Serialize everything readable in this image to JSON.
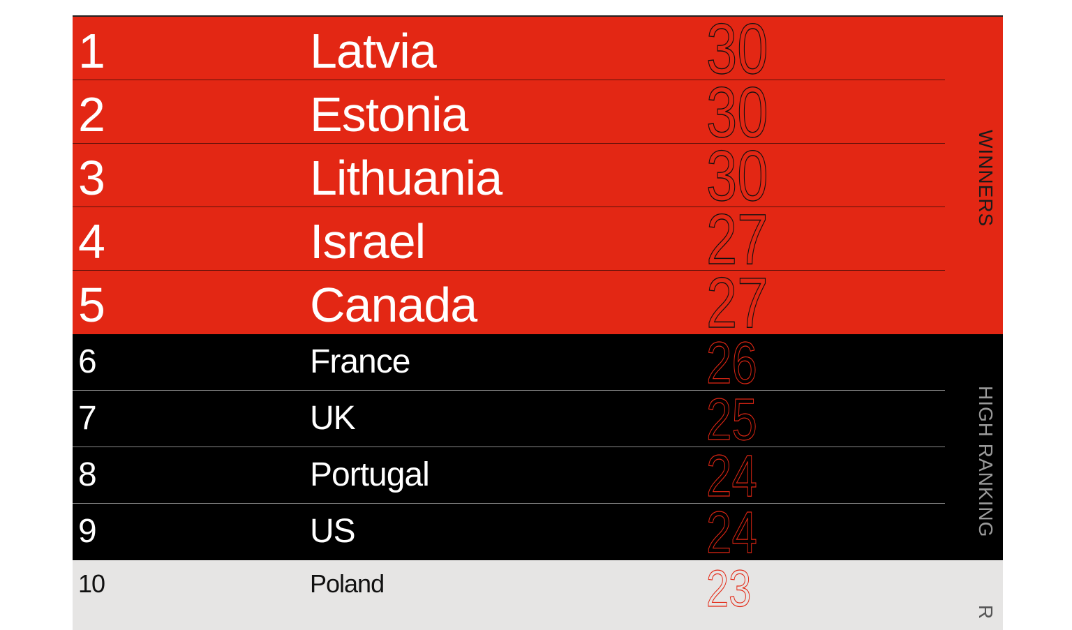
{
  "chart_data": {
    "type": "table",
    "columns": [
      "rank",
      "country",
      "score"
    ],
    "groups": [
      {
        "label": "WINNERS",
        "color": "#e32714",
        "rows": [
          {
            "rank": "1",
            "country": "Latvia",
            "score": "30"
          },
          {
            "rank": "2",
            "country": "Estonia",
            "score": "30"
          },
          {
            "rank": "3",
            "country": "Lithuania",
            "score": "30"
          },
          {
            "rank": "4",
            "country": "Israel",
            "score": "27"
          },
          {
            "rank": "5",
            "country": "Canada",
            "score": "27"
          }
        ]
      },
      {
        "label": "HIGH RANKING",
        "color": "#000000",
        "rows": [
          {
            "rank": "6",
            "country": "France",
            "score": "26"
          },
          {
            "rank": "7",
            "country": "UK",
            "score": "25"
          },
          {
            "rank": "8",
            "country": "Portugal",
            "score": "24"
          },
          {
            "rank": "9",
            "country": "US",
            "score": "24"
          }
        ]
      },
      {
        "label": "R",
        "color": "#e6e5e4",
        "rows": [
          {
            "rank": "10",
            "country": "Poland",
            "score": "23"
          }
        ]
      }
    ]
  }
}
